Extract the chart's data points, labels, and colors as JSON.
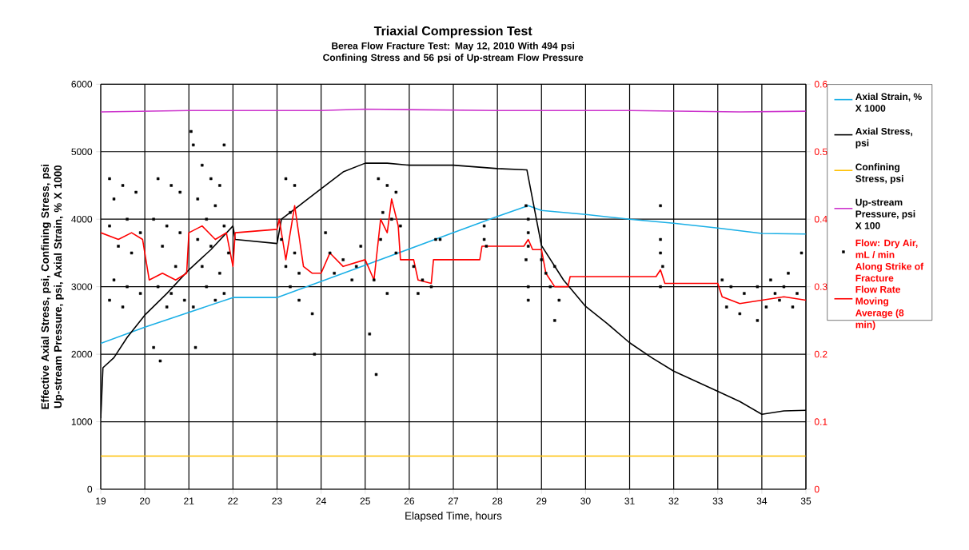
{
  "chart_data": {
    "type": "line",
    "title": "Triaxial Compression  Test",
    "subtitle": "Berea Flow Fracture Test: May 12, 2010  With 494 psi Confining  Stress and 56 psi of Up-stream Flow Pressure",
    "xlabel": "Elapsed Time, hours",
    "ylabel": "Effective Axial Stress, psi, Confining Stress, psi Up-stream Pressure, psi, Axial Strain, % X 1000",
    "xlim": [
      19,
      35
    ],
    "xticks": [
      19,
      20,
      21,
      22,
      23,
      24,
      25,
      26,
      27,
      28,
      29,
      30,
      31,
      32,
      33,
      34,
      35
    ],
    "ylim": [
      0,
      6000
    ],
    "yticks": [
      0,
      1000,
      2000,
      3000,
      4000,
      5000,
      6000
    ],
    "y2lim": [
      0,
      0.6
    ],
    "y2ticks": [
      0,
      0.1,
      0.2,
      0.3,
      0.4,
      0.5,
      0.6
    ],
    "grid": true,
    "legend": "right",
    "series": [
      {
        "name": "Axial Strain, % X 1000",
        "color": "#1aafe6",
        "x": [
          19,
          20,
          21,
          22,
          23,
          24,
          25,
          26,
          27,
          28,
          28.7,
          29,
          30,
          31,
          32,
          33,
          34,
          35
        ],
        "values": [
          2160,
          2400,
          2620,
          2840,
          2840,
          3080,
          3320,
          3560,
          3800,
          4040,
          4200,
          4130,
          4070,
          4000,
          3940,
          3870,
          3790,
          3780
        ]
      },
      {
        "name": "Axial Stress, psi",
        "color": "#000000",
        "x": [
          19,
          19.05,
          19.3,
          19.6,
          20,
          20.5,
          21,
          21.5,
          22,
          22.05,
          23,
          23.1,
          23.5,
          24,
          24.5,
          25,
          25.5,
          26,
          27,
          28,
          28.67,
          29,
          29.5,
          30,
          30.5,
          31,
          31.5,
          32,
          33,
          33.5,
          34,
          34.5,
          35
        ],
        "values": [
          1050,
          1800,
          1950,
          2250,
          2580,
          2900,
          3250,
          3550,
          3900,
          3700,
          3640,
          4000,
          4200,
          4450,
          4700,
          4830,
          4830,
          4800,
          4800,
          4750,
          4730,
          3610,
          3100,
          2710,
          2450,
          2170,
          1950,
          1750,
          1450,
          1300,
          1110,
          1160,
          1170
        ]
      },
      {
        "name": "Confining Stress, psi",
        "color": "#ffc000",
        "x": [
          19,
          35
        ],
        "values": [
          490,
          490
        ]
      },
      {
        "name": "Up-stream Pressure, psi X 100",
        "color": "#cc33cc",
        "x": [
          19,
          21,
          24,
          25,
          28,
          31,
          33.5,
          35
        ],
        "values": [
          5590,
          5610,
          5610,
          5630,
          5610,
          5610,
          5590,
          5600
        ]
      },
      {
        "name": "Flow: Dry Air, mL / min Along Strike of Fracture",
        "type": "scatter",
        "marker": "square",
        "axis": "y2",
        "color": "#000000",
        "x": [
          19.2,
          19.5,
          19.8,
          19.3,
          19.6,
          19.2,
          19.9,
          19.4,
          19.7,
          19.3,
          19.6,
          19.9,
          19.2,
          19.5,
          20.3,
          20.6,
          20.8,
          20.2,
          20.5,
          20.8,
          20.4,
          20.7,
          20.3,
          20.6,
          20.9,
          20.5,
          20.2,
          20.35,
          21.05,
          21.1,
          21.3,
          21.5,
          21.7,
          21.2,
          21.6,
          21.4,
          21.8,
          21.2,
          21.5,
          21.9,
          21.3,
          21.7,
          21.4,
          21.8,
          21.6,
          21.1,
          21.15,
          21.8,
          23.2,
          23.4,
          23.3,
          23.1,
          23.4,
          23.2,
          23.5,
          23.3,
          23.5,
          23.8,
          23.85,
          24.2,
          24.5,
          24.8,
          24.3,
          24.7,
          24.1,
          24.9,
          25.3,
          25.5,
          25.7,
          25.4,
          25.6,
          25.35,
          25.7,
          25.2,
          25.5,
          25.1,
          25.25,
          25.8,
          26.1,
          26.3,
          26.5,
          26.2,
          26.6,
          26.7,
          27.7,
          27.7,
          27.75,
          28.65,
          28.7,
          28.7,
          28.7,
          28.65,
          28.7,
          28.7,
          29.0,
          29.1,
          29.3,
          29.2,
          29.4,
          29.3,
          31.7,
          31.7,
          31.7,
          31.75,
          31.7,
          33.1,
          33.3,
          33.6,
          33.9,
          34.2,
          34.5,
          34.8,
          33.2,
          33.5,
          34.1,
          34.4,
          34.7,
          34.9,
          33.9,
          34.3,
          34.6
        ],
        "values": [
          0.46,
          0.45,
          0.44,
          0.43,
          0.4,
          0.39,
          0.38,
          0.36,
          0.35,
          0.31,
          0.3,
          0.29,
          0.28,
          0.27,
          0.46,
          0.45,
          0.44,
          0.4,
          0.39,
          0.38,
          0.36,
          0.33,
          0.3,
          0.29,
          0.28,
          0.27,
          0.21,
          0.19,
          0.53,
          0.51,
          0.48,
          0.46,
          0.45,
          0.43,
          0.42,
          0.4,
          0.39,
          0.37,
          0.36,
          0.35,
          0.33,
          0.32,
          0.3,
          0.29,
          0.28,
          0.27,
          0.21,
          0.51,
          0.46,
          0.45,
          0.41,
          0.37,
          0.35,
          0.33,
          0.32,
          0.3,
          0.28,
          0.26,
          0.2,
          0.35,
          0.34,
          0.33,
          0.32,
          0.31,
          0.38,
          0.36,
          0.46,
          0.45,
          0.44,
          0.41,
          0.4,
          0.37,
          0.35,
          0.31,
          0.29,
          0.23,
          0.17,
          0.39,
          0.33,
          0.31,
          0.3,
          0.29,
          0.37,
          0.37,
          0.39,
          0.37,
          0.36,
          0.42,
          0.4,
          0.38,
          0.36,
          0.34,
          0.3,
          0.28,
          0.34,
          0.32,
          0.33,
          0.3,
          0.28,
          0.25,
          0.42,
          0.37,
          0.35,
          0.33,
          0.3,
          0.31,
          0.3,
          0.29,
          0.3,
          0.31,
          0.3,
          0.29,
          0.27,
          0.26,
          0.27,
          0.28,
          0.27,
          0.35,
          0.25,
          0.29,
          0.32
        ]
      },
      {
        "name": "Flow Rate Moving Average (8 min)",
        "axis": "y2",
        "color": "#ff0000",
        "x": [
          19,
          19.4,
          19.7,
          19.95,
          20.1,
          20.4,
          20.7,
          20.95,
          21.0,
          21.3,
          21.6,
          21.85,
          22.0,
          22.05,
          23.0,
          23.05,
          23.2,
          23.4,
          23.6,
          23.8,
          24.0,
          24.2,
          24.5,
          25,
          25.2,
          25.35,
          25.5,
          25.6,
          25.75,
          25.8,
          26.1,
          26.2,
          26.5,
          26.55,
          27.6,
          27.65,
          28.6,
          28.7,
          28.8,
          29.0,
          29.1,
          29.3,
          29.6,
          29.65,
          31.6,
          31.7,
          31.8,
          33.0,
          33.1,
          33.5,
          34,
          34.5,
          35
        ],
        "values": [
          0.38,
          0.37,
          0.38,
          0.37,
          0.31,
          0.32,
          0.31,
          0.32,
          0.38,
          0.39,
          0.37,
          0.38,
          0.33,
          0.38,
          0.385,
          0.4,
          0.34,
          0.42,
          0.33,
          0.32,
          0.32,
          0.35,
          0.33,
          0.34,
          0.31,
          0.4,
          0.38,
          0.43,
          0.39,
          0.34,
          0.34,
          0.31,
          0.305,
          0.34,
          0.34,
          0.36,
          0.36,
          0.37,
          0.355,
          0.355,
          0.32,
          0.3,
          0.3,
          0.315,
          0.315,
          0.325,
          0.305,
          0.305,
          0.285,
          0.275,
          0.28,
          0.285,
          0.28
        ]
      }
    ]
  }
}
